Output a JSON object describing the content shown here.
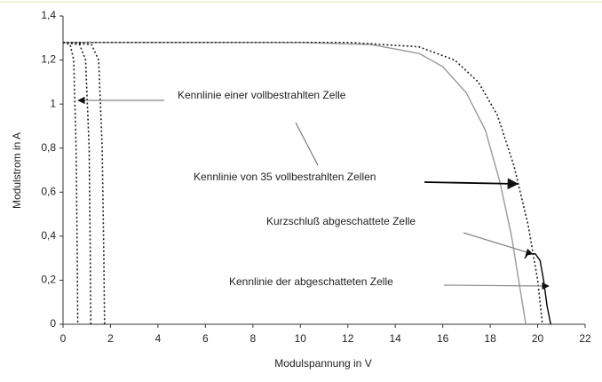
{
  "chart_data": {
    "type": "line",
    "xlabel": "Modulspannung in V",
    "ylabel": "Modulstrom in A",
    "xlim": [
      0,
      22
    ],
    "ylim": [
      0,
      1.4
    ],
    "xticks": [
      0,
      2,
      4,
      6,
      8,
      10,
      12,
      14,
      16,
      18,
      20,
      22
    ],
    "yticks": [
      0,
      {
        "value": 0.2,
        "label": "0,2"
      },
      {
        "value": 0.4,
        "label": "0,4"
      },
      {
        "value": 0.6,
        "label": "0,6"
      },
      {
        "value": 0.8,
        "label": "0,8"
      },
      1,
      {
        "value": 1.2,
        "label": "1,2"
      },
      {
        "value": 1.4,
        "label": "1,4"
      }
    ],
    "series": [
      {
        "color": "#222222",
        "style": "dotted",
        "x": [
          0,
          0.3,
          0.45,
          0.55,
          0.6,
          0.62
        ],
        "values": [
          1.28,
          1.27,
          1.2,
          0.8,
          0.3,
          0
        ]
      },
      {
        "color": "#222222",
        "style": "dotted",
        "x": [
          0,
          0.7,
          0.95,
          1.1,
          1.15,
          1.17
        ],
        "values": [
          1.28,
          1.27,
          1.2,
          0.8,
          0.3,
          0
        ]
      },
      {
        "color": "#222222",
        "style": "dotted",
        "x": [
          0,
          1.2,
          1.5,
          1.65,
          1.72,
          1.75
        ],
        "values": [
          1.28,
          1.27,
          1.2,
          0.8,
          0.3,
          0
        ]
      },
      {
        "color": "#999999",
        "style": "solid",
        "x": [
          0,
          10,
          13,
          15,
          16,
          17,
          17.8,
          18.4,
          18.9,
          19.2,
          19.5
        ],
        "values": [
          1.28,
          1.28,
          1.27,
          1.23,
          1.17,
          1.05,
          0.88,
          0.65,
          0.4,
          0.2,
          0
        ]
      },
      {
        "color": "#222222",
        "style": "dotted",
        "x": [
          0,
          12,
          15,
          16.5,
          17.5,
          18.3,
          19,
          19.6,
          20,
          20.2
        ],
        "values": [
          1.28,
          1.28,
          1.26,
          1.2,
          1.1,
          0.95,
          0.72,
          0.45,
          0.2,
          0
        ]
      },
      {
        "color": "#000000",
        "style": "solid",
        "x": [
          19.45,
          19.6,
          19.9,
          20.1,
          20.25,
          20.4,
          20.55
        ],
        "values": [
          0.3,
          0.32,
          0.32,
          0.29,
          0.2,
          0.08,
          0
        ]
      }
    ],
    "annotations": [
      "Kennlinie einer vollbestrahlten Zelle",
      "Kennlinie von 35 vollbestrahlten Zellen",
      "Kurzschluß abgeschattete Zelle",
      "Kennlinie der abgeschatteten Zelle"
    ]
  }
}
